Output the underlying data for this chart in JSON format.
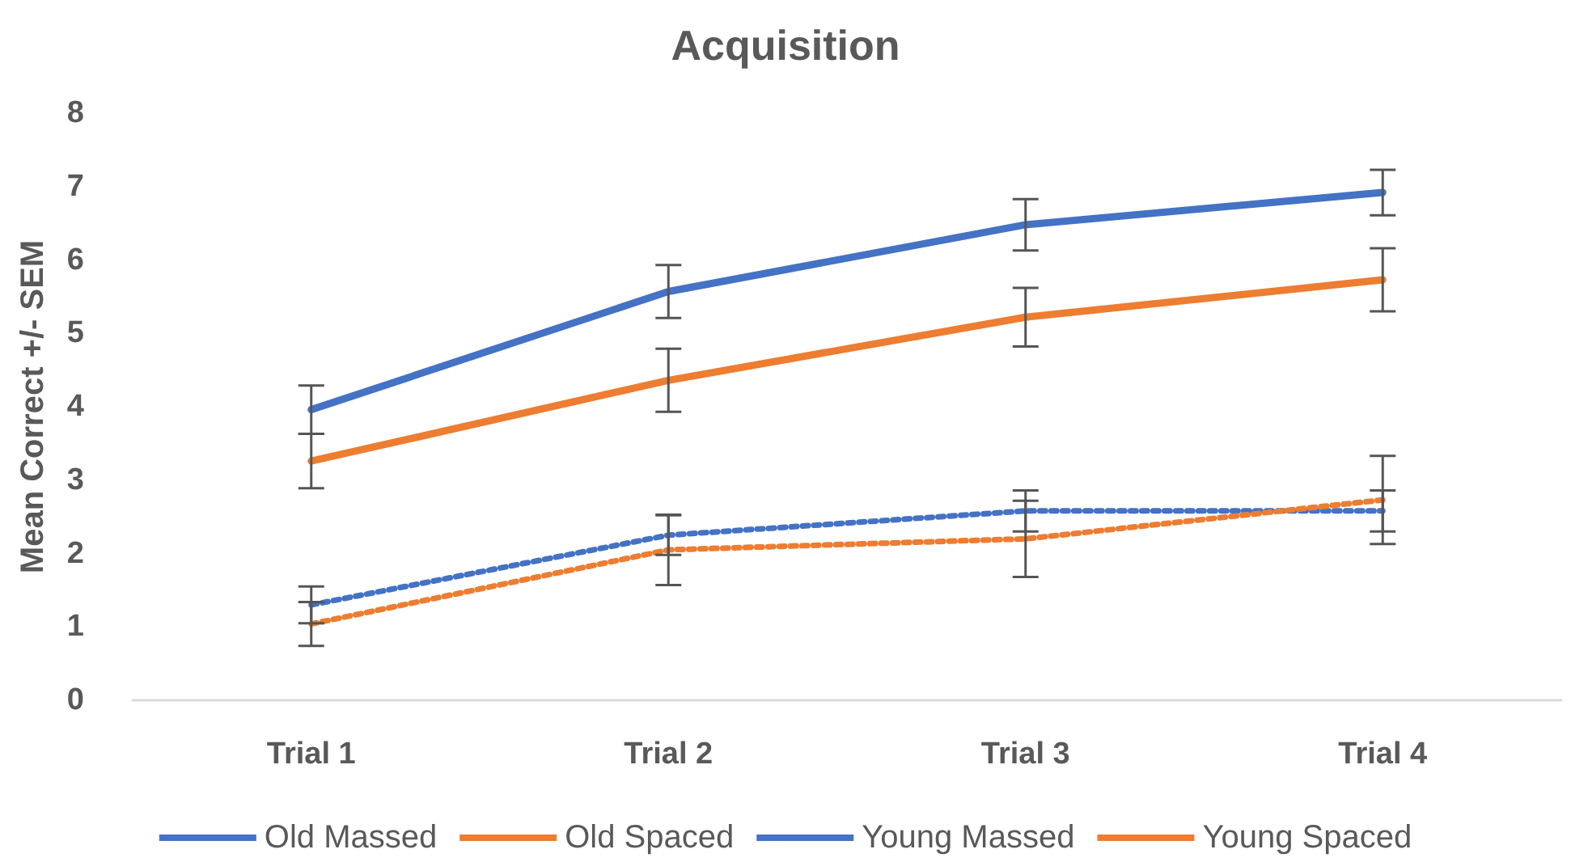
{
  "chart_data": {
    "type": "line",
    "title": "Acquisition",
    "ylabel": "Mean Correct +/- SEM",
    "categories": [
      "Trial 1",
      "Trial 2",
      "Trial 3",
      "Trial 4"
    ],
    "ylim": [
      0,
      8
    ],
    "yticks": [
      0,
      1,
      2,
      3,
      4,
      5,
      6,
      7,
      8
    ],
    "grid": false,
    "legend": "bottom",
    "marker": "none",
    "series": [
      {
        "name": "Old Massed",
        "color": "#4472c4",
        "line_style": "dotted",
        "values": [
          1.3,
          2.25,
          2.58,
          2.58
        ],
        "errors": [
          0.25,
          0.27,
          0.28,
          0.28
        ]
      },
      {
        "name": "Old Spaced",
        "color": "#ed7d31",
        "line_style": "dotted",
        "values": [
          1.04,
          2.05,
          2.2,
          2.73
        ],
        "errors": [
          0.3,
          0.48,
          0.52,
          0.6
        ]
      },
      {
        "name": "Young Massed",
        "color": "#4472c4",
        "line_style": "solid",
        "values": [
          3.96,
          5.57,
          6.48,
          6.92
        ],
        "errors": [
          0.33,
          0.36,
          0.35,
          0.31
        ]
      },
      {
        "name": "Young Spaced",
        "color": "#ed7d31",
        "line_style": "solid",
        "values": [
          3.26,
          4.36,
          5.22,
          5.73
        ],
        "errors": [
          0.37,
          0.43,
          0.4,
          0.43
        ]
      }
    ]
  }
}
